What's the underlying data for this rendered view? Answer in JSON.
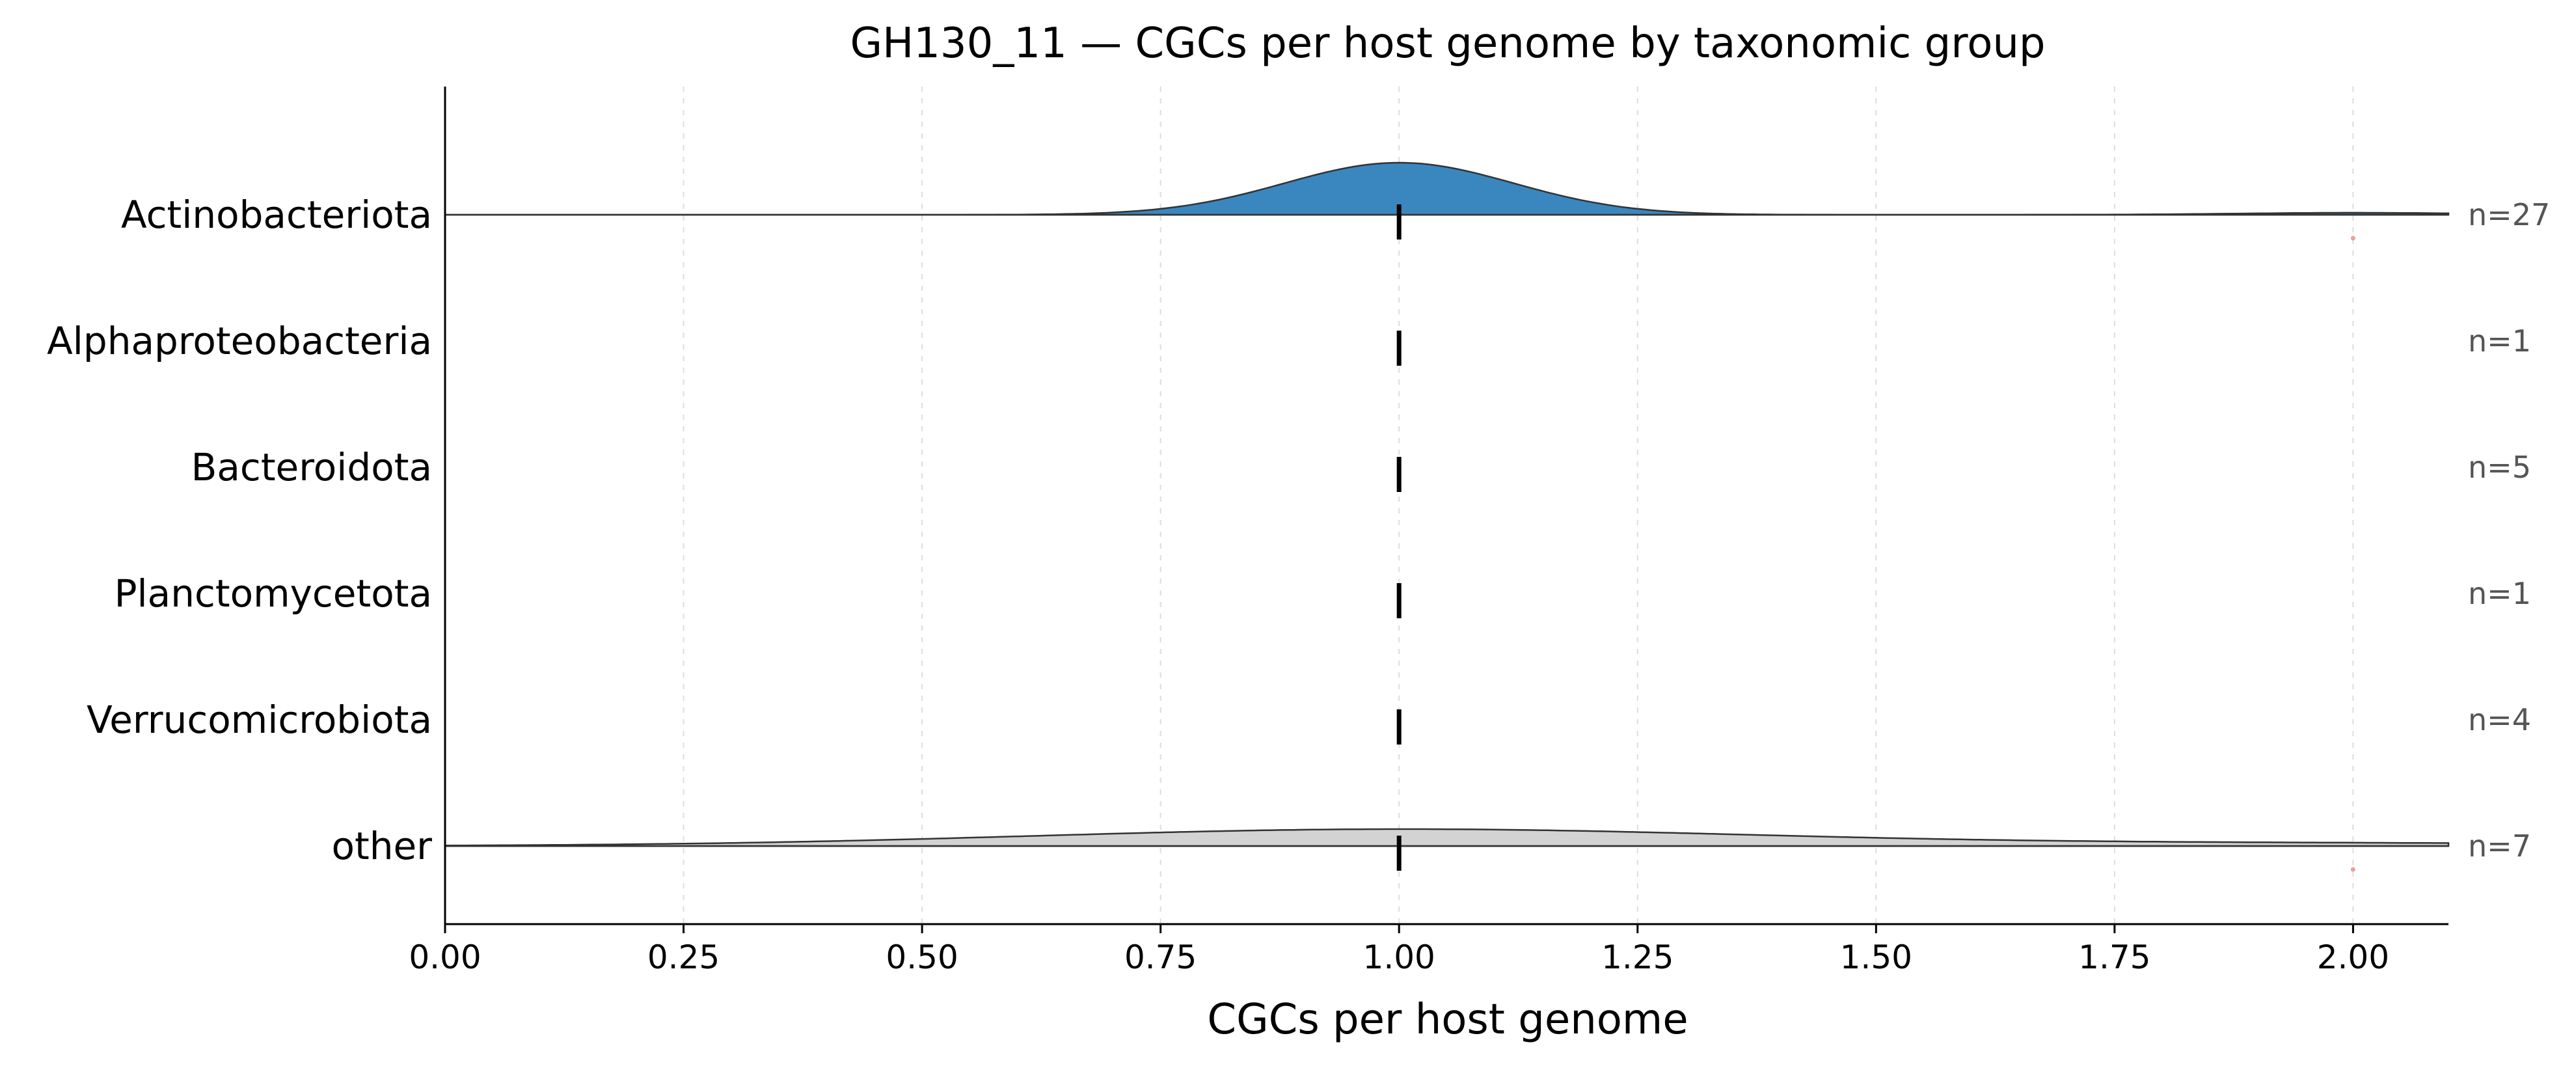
{
  "chart_data": {
    "type": "ridgeline",
    "title": "GH130_11 — CGCs per host genome by taxonomic group",
    "xlabel": "CGCs per host genome",
    "xlim": [
      0.0,
      2.1
    ],
    "xticks": [
      "0.00",
      "0.25",
      "0.50",
      "0.75",
      "1.00",
      "1.25",
      "1.50",
      "1.75",
      "2.00"
    ],
    "grid": "vertical dashed",
    "categories": [
      "Actinobacteriota",
      "Alphaproteobacteria",
      "Bacteroidota",
      "Planctomycetota",
      "Verrucomicrobiota",
      "other"
    ],
    "series": [
      {
        "category": "Actinobacteriota",
        "n_label": "n=27",
        "median": 1.0,
        "color": "#3a87bf",
        "density": [
          {
            "mu": 1.0,
            "sd": 0.12,
            "w": 0.963
          },
          {
            "mu": 2.0,
            "sd": 0.12,
            "w": 0.037
          }
        ],
        "outliers": [
          2.0
        ]
      },
      {
        "category": "Alphaproteobacteria",
        "n_label": "n=1",
        "median": 1.0,
        "color": null,
        "density": [],
        "outliers": []
      },
      {
        "category": "Bacteroidota",
        "n_label": "n=5",
        "median": 1.0,
        "color": null,
        "density": [],
        "outliers": []
      },
      {
        "category": "Planctomycetota",
        "n_label": "n=1",
        "median": 1.0,
        "color": null,
        "density": [],
        "outliers": []
      },
      {
        "category": "Verrucomicrobiota",
        "n_label": "n=4",
        "median": 1.0,
        "color": null,
        "density": [],
        "outliers": []
      },
      {
        "category": "other",
        "n_label": "n=7",
        "median": 1.0,
        "color": "#d3d3d3",
        "density": [
          {
            "mu": 1.0,
            "sd": 0.38,
            "w": 0.857
          },
          {
            "mu": 2.0,
            "sd": 0.38,
            "w": 0.143
          }
        ],
        "outliers": [
          2.0
        ]
      }
    ],
    "outlier_color": "#e8a0a0"
  }
}
